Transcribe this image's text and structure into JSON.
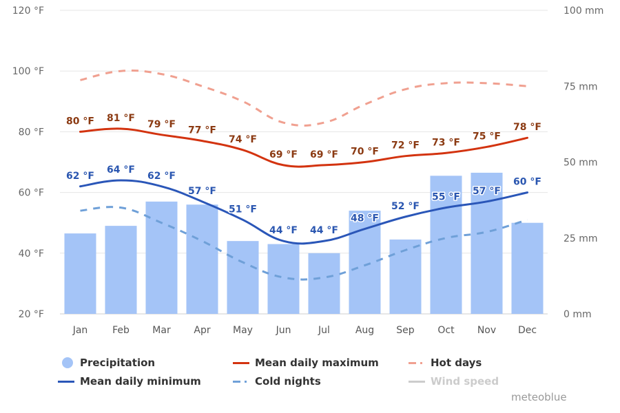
{
  "chart_data": {
    "type": "bar+line",
    "title": "",
    "categories": [
      "Jan",
      "Feb",
      "Mar",
      "Apr",
      "May",
      "Jun",
      "Jul",
      "Aug",
      "Sep",
      "Oct",
      "Nov",
      "Dec"
    ],
    "left_axis": {
      "unit": "°F",
      "range": [
        20,
        120
      ],
      "ticks": [
        "20 °F",
        "40 °F",
        "60 °F",
        "80 °F",
        "100 °F",
        "120 °F"
      ]
    },
    "right_axis": {
      "unit": "mm",
      "range": [
        0,
        100
      ],
      "ticks": [
        "0 mm",
        "25 mm",
        "50 mm",
        "75 mm",
        "100 mm"
      ]
    },
    "grid": true,
    "legend_position": "bottom",
    "series": [
      {
        "name": "Precipitation",
        "type": "bar",
        "axis": "right",
        "color": "#a4c4f7",
        "values": [
          26.5,
          29,
          37,
          36,
          24,
          23,
          20,
          34,
          24.5,
          45.5,
          46.5,
          30
        ]
      },
      {
        "name": "Mean daily maximum",
        "type": "line",
        "axis": "left",
        "color": "#d3330f",
        "label_color": "#8b3a12",
        "values": [
          80,
          81,
          79,
          77,
          74,
          69,
          69,
          70,
          72,
          73,
          75,
          78
        ],
        "labels": [
          "80 °F",
          "81 °F",
          "79 °F",
          "77 °F",
          "74 °F",
          "69 °F",
          "69 °F",
          "70 °F",
          "72 °F",
          "73 °F",
          "75 °F",
          "78 °F"
        ]
      },
      {
        "name": "Hot days",
        "type": "line",
        "style": "dashed",
        "axis": "left",
        "color": "#f0a090",
        "values": [
          97,
          100,
          99,
          95,
          90,
          83,
          83,
          89,
          94,
          96,
          96,
          95
        ]
      },
      {
        "name": "Mean daily minimum",
        "type": "line",
        "axis": "left",
        "color": "#2a56b8",
        "label_color": "#2a56b0",
        "values": [
          62,
          64,
          62,
          57,
          51,
          44,
          44,
          48,
          52,
          55,
          57,
          60
        ],
        "labels": [
          "62 °F",
          "64 °F",
          "62 °F",
          "57 °F",
          "51 °F",
          "44 °F",
          "44 °F",
          "48 °F",
          "52 °F",
          "55 °F",
          "57 °F",
          "60 °F"
        ]
      },
      {
        "name": "Cold nights",
        "type": "line",
        "style": "dashed",
        "axis": "left",
        "color": "#6fa0d8",
        "values": [
          54,
          55,
          50,
          44,
          37,
          32,
          32,
          36,
          41,
          45,
          47,
          51
        ]
      },
      {
        "name": "Wind speed",
        "type": "line",
        "hidden": true,
        "color": "#cccccc",
        "values": []
      }
    ]
  },
  "legend": [
    {
      "label": "Precipitation",
      "symbol": "circle",
      "color": "#a4c4f7",
      "enabled": true
    },
    {
      "label": "Mean daily maximum",
      "symbol": "line",
      "color": "#d3330f",
      "enabled": true
    },
    {
      "label": "Hot days",
      "symbol": "dash-dot",
      "color": "#f0a090",
      "enabled": true
    },
    {
      "label": "Mean daily minimum",
      "symbol": "line",
      "color": "#2a56b8",
      "enabled": true
    },
    {
      "label": "Cold nights",
      "symbol": "dash-dot",
      "color": "#6fa0d8",
      "enabled": true
    },
    {
      "label": "Wind speed",
      "symbol": "line",
      "color": "#cccccc",
      "enabled": false
    }
  ],
  "credit": "meteoblue"
}
